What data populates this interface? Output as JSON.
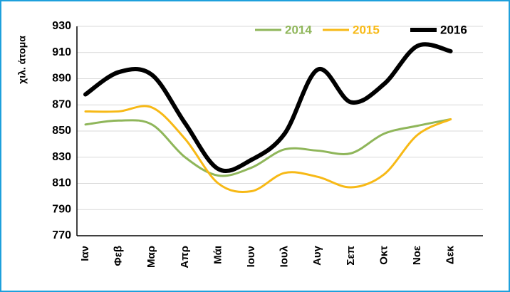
{
  "chart_data": {
    "type": "line",
    "y_label": "χιλ. άτομα",
    "categories": [
      "Ιαν",
      "Φεβ",
      "Μαρ",
      "Απρ",
      "Μάι",
      "Ιουν",
      "Ιουλ",
      "Αυγ",
      "Σεπ",
      "Οκτ",
      "Νοε",
      "Δεκ"
    ],
    "series": [
      {
        "name": "2014",
        "color": "#8fb65a",
        "values": [
          855,
          858,
          855,
          830,
          816,
          822,
          836,
          835,
          833,
          848,
          854,
          859
        ]
      },
      {
        "name": "2015",
        "color": "#f7b916",
        "values": [
          865,
          865,
          868,
          844,
          810,
          804,
          818,
          815,
          807,
          817,
          847,
          859
        ]
      },
      {
        "name": "2016",
        "color": "#000000",
        "values": [
          878,
          895,
          893,
          856,
          821,
          828,
          848,
          897,
          872,
          886,
          915,
          911
        ]
      }
    ],
    "ylim": [
      770,
      930
    ],
    "yticks": [
      770,
      790,
      810,
      830,
      850,
      870,
      890,
      910,
      930
    ],
    "grid": true
  }
}
